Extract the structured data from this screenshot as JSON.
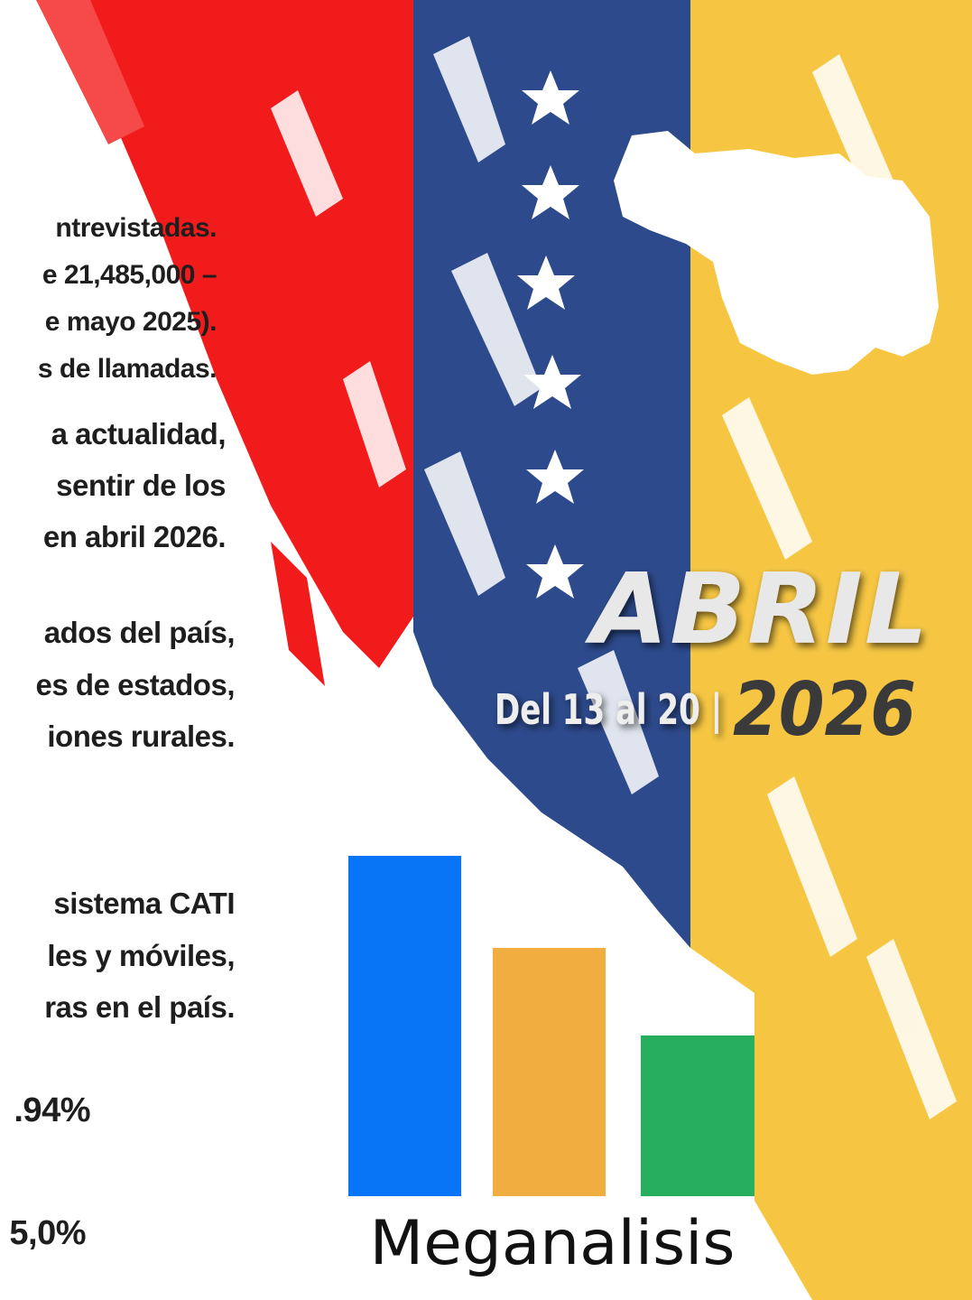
{
  "text_lines": [
    "ntrevistadas.",
    "e 21,485,000 –",
    "e mayo 2025).",
    "s de llamadas.",
    "a actualidad,",
    "sentir de los",
    "en abril 2026.",
    "ados del país,",
    "es de estados,",
    "iones rurales.",
    "sistema CATI",
    "les y móviles,",
    "ras en el país.",
    ".94%",
    "5,0%"
  ],
  "banner": {
    "month": "ABRIL",
    "dates": "Del 13 al 20 |",
    "year": "2026"
  },
  "brand": "Meganalisis"
}
